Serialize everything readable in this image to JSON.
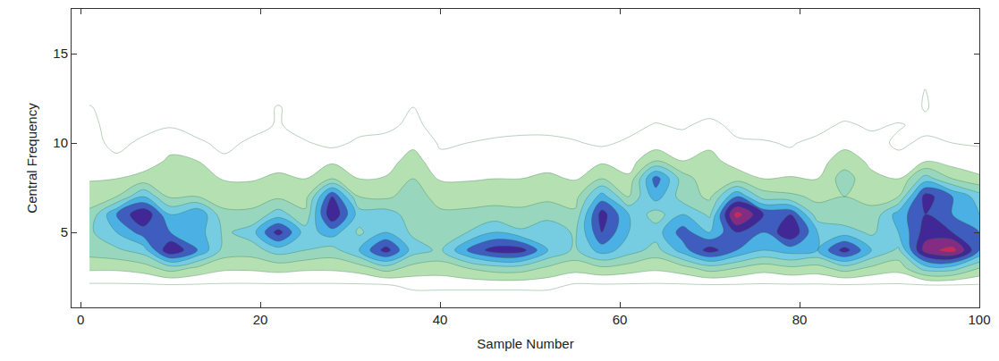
{
  "chart_data": {
    "type": "contour",
    "x_label": "Sample Number",
    "y_label": "Central Frequency",
    "xlim": [
      -1,
      100
    ],
    "ylim": [
      0.8,
      17.5
    ],
    "xticks": [
      0,
      20,
      40,
      60,
      80,
      100
    ],
    "yticks": [
      5,
      10,
      15
    ],
    "zlim": [
      0,
      10
    ],
    "grid": false,
    "x": [
      1,
      4,
      7,
      10,
      13,
      16,
      19,
      22,
      25,
      28,
      31,
      34,
      37,
      40,
      43,
      46,
      49,
      52,
      55,
      58,
      61,
      64,
      67,
      70,
      73,
      76,
      79,
      82,
      85,
      88,
      91,
      94,
      97,
      100
    ],
    "y": [
      1,
      2,
      3,
      4,
      5,
      6,
      7,
      8,
      9,
      10,
      11,
      12,
      13,
      14,
      17
    ],
    "z": [
      [
        0,
        0,
        0,
        0,
        0,
        0,
        0,
        0,
        0,
        0,
        0,
        0,
        0,
        0,
        0,
        0,
        0,
        0,
        0,
        0,
        0,
        0,
        0,
        0,
        0,
        0,
        0,
        0,
        0,
        0,
        0,
        0,
        0,
        0
      ],
      [
        0.8,
        0.8,
        0.8,
        0.8,
        0.8,
        0.8,
        0.8,
        0.8,
        0.8,
        0.8,
        0.8,
        0.8,
        1.3,
        1.3,
        1.3,
        1.3,
        1.3,
        1.3,
        0.8,
        0.8,
        0.8,
        0.8,
        0.8,
        0.8,
        0.8,
        0.8,
        0.8,
        0.8,
        0.8,
        0.8,
        0.8,
        0.8,
        0.8,
        0.8
      ],
      [
        2.2,
        2.2,
        2.5,
        3.5,
        2.8,
        2.2,
        2.2,
        2.4,
        2.2,
        2.2,
        2.5,
        3.5,
        2.6,
        2.5,
        3.0,
        3.5,
        3.5,
        2.8,
        2.4,
        2.8,
        2.5,
        2.2,
        2.6,
        3.5,
        3.0,
        2.4,
        2.8,
        2.6,
        3.5,
        2.8,
        2.4,
        4.5,
        4.5,
        3.0
      ],
      [
        3.5,
        3.8,
        4.5,
        8,
        6,
        3.6,
        3.5,
        4.5,
        4,
        3.6,
        5,
        7.5,
        4.5,
        3.8,
        6,
        7.5,
        7.5,
        5,
        3.8,
        5.5,
        4.5,
        3.6,
        5.5,
        7.5,
        6,
        5,
        5.5,
        5,
        7.5,
        5,
        3.8,
        8.5,
        9.5,
        6
      ],
      [
        3.8,
        5,
        6.5,
        6,
        5.5,
        3.8,
        4.5,
        7.5,
        4.5,
        5.5,
        3.8,
        5,
        3.8,
        3.8,
        4,
        5,
        4.2,
        5,
        3.8,
        7,
        5,
        4.5,
        6.5,
        5,
        7,
        6,
        8,
        5,
        4.5,
        3.8,
        5,
        7.5,
        7,
        6
      ],
      [
        3.2,
        6,
        8,
        5,
        6,
        3.2,
        3.2,
        4.5,
        3.2,
        8,
        4.5,
        4.5,
        3.5,
        3.2,
        3.2,
        3.4,
        3.2,
        3.5,
        3.2,
        7.5,
        5,
        3.5,
        5,
        3.8,
        9.5,
        7,
        7,
        3.4,
        3.2,
        3.2,
        5.5,
        7,
        6,
        5
      ],
      [
        2.6,
        3,
        5,
        2.8,
        3,
        2.6,
        2.6,
        2.8,
        2.6,
        7,
        3,
        2.8,
        3.5,
        2.6,
        2.6,
        2.6,
        2.7,
        2.8,
        2.6,
        5.5,
        3,
        5.5,
        3.5,
        2.8,
        6,
        3.5,
        3.2,
        2.8,
        3,
        2.8,
        3,
        7.5,
        6,
        4.5
      ],
      [
        1.9,
        2,
        2.4,
        2.2,
        2.8,
        1.9,
        1.9,
        2.2,
        2,
        3,
        2,
        2.1,
        3,
        1.9,
        1.9,
        2,
        2,
        2.2,
        1.9,
        3,
        2.2,
        6.5,
        3.5,
        2.3,
        2.5,
        2,
        2.1,
        2,
        3.5,
        2.2,
        2,
        4.5,
        3,
        2.2
      ],
      [
        1.6,
        1.3,
        1.4,
        2.2,
        2,
        1.2,
        1.4,
        1.6,
        1.4,
        1.8,
        1.4,
        1.5,
        2.5,
        1.2,
        1.3,
        1.8,
        1.5,
        1.6,
        1.4,
        1.8,
        1.5,
        3,
        2,
        2.3,
        1.6,
        1.5,
        1.3,
        1.6,
        2.5,
        1.8,
        1.3,
        1.9,
        1.5,
        1.4
      ],
      [
        1.5,
        0.6,
        1.3,
        1.6,
        1.2,
        0.7,
        1.2,
        1.4,
        1.1,
        0.7,
        1.2,
        1.4,
        1.7,
        0.9,
        1.0,
        1.2,
        1.3,
        1.3,
        1.1,
        0.8,
        1.2,
        1.4,
        1.6,
        1.8,
        1.2,
        1.1,
        0.9,
        1.3,
        1.7,
        1.4,
        0.8,
        1.2,
        1.0,
        0.9
      ],
      [
        1.3,
        0.5,
        0.5,
        0.9,
        0.5,
        0.5,
        0.6,
        1.1,
        0.5,
        0.5,
        0.6,
        0.7,
        1.3,
        0.5,
        0.5,
        0.5,
        0.6,
        0.6,
        0.5,
        0.5,
        0.6,
        1.1,
        0.8,
        1.4,
        0.6,
        0.5,
        0.5,
        0.6,
        1.2,
        0.8,
        1.1,
        0.7,
        0.5,
        0.5
      ],
      [
        1.1,
        0.3,
        0.3,
        0.3,
        0.3,
        0.3,
        0.3,
        1.1,
        0.3,
        0.3,
        0.3,
        0.3,
        1.0,
        0.3,
        0.3,
        0.3,
        0.3,
        0.3,
        0.3,
        0.3,
        0.3,
        0.3,
        0.3,
        0.3,
        0.3,
        0.3,
        0.3,
        0.3,
        0.3,
        0.3,
        0.3,
        1.1,
        0.3,
        0.3
      ],
      [
        0.2,
        0.2,
        0.2,
        0.2,
        0.2,
        0.2,
        0.2,
        0.2,
        0.2,
        0.2,
        0.2,
        0.2,
        0.2,
        0.2,
        0.2,
        0.2,
        0.2,
        0.2,
        0.2,
        0.2,
        0.2,
        0.2,
        0.2,
        0.2,
        0.2,
        0.2,
        0.2,
        0.2,
        0.2,
        0.2,
        0.2,
        1.05,
        0.2,
        0.2
      ],
      [
        0,
        0,
        0,
        0,
        0,
        0,
        0,
        0,
        0,
        0,
        0,
        0,
        0,
        0,
        0,
        0,
        0,
        0,
        0,
        0,
        0,
        0,
        0,
        0,
        0,
        0,
        0,
        0,
        0,
        0,
        0,
        0,
        0,
        0
      ],
      [
        0,
        0,
        0,
        0,
        0,
        0,
        0,
        0,
        0,
        0,
        0,
        0,
        0,
        0,
        0,
        0,
        0,
        0,
        0,
        0,
        0,
        0,
        0,
        0,
        0,
        0,
        0,
        0,
        0,
        0,
        0,
        0,
        0,
        0
      ]
    ]
  }
}
